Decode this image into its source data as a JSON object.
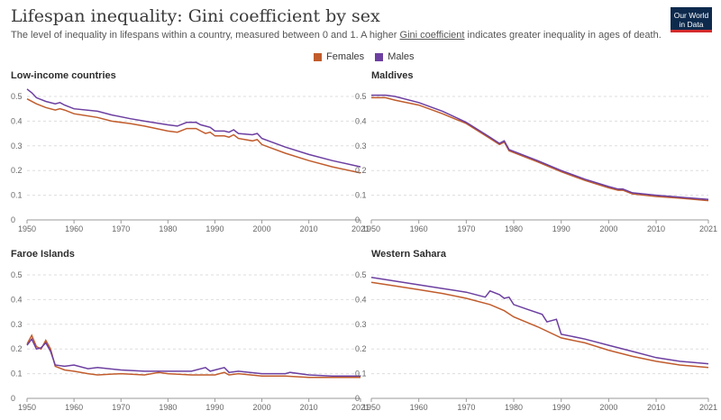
{
  "header": {
    "title": "Lifespan inequality: Gini coefficient by sex",
    "subtitle_pre": "The level of inequality in lifespans within a country, measured between 0 and 1. A higher ",
    "subtitle_link": "Gini coefficient",
    "subtitle_post": " indicates greater inequality in ages of death.",
    "logo_line1": "Our World",
    "logo_line2": "in Data"
  },
  "legend": [
    {
      "label": "Females",
      "color": "#c15c2c"
    },
    {
      "label": "Males",
      "color": "#6c3fa0"
    }
  ],
  "chart_data": [
    {
      "type": "line",
      "title": "Low-income countries",
      "ylim": [
        0,
        0.5
      ],
      "yticks": [
        0,
        0.1,
        0.2,
        0.3,
        0.4,
        0.5
      ],
      "xticks": [
        1950,
        1960,
        1970,
        1980,
        1990,
        2000,
        2010,
        2021
      ],
      "series": [
        {
          "name": "Females",
          "color": "#c15c2c",
          "x": [
            1950,
            1952,
            1954,
            1956,
            1957,
            1958,
            1960,
            1965,
            1968,
            1972,
            1975,
            1980,
            1982,
            1984,
            1986,
            1987,
            1988,
            1989,
            1990,
            1992,
            1993,
            1994,
            1995,
            1998,
            1999,
            2000,
            2005,
            2010,
            2015,
            2021
          ],
          "values": [
            0.49,
            0.47,
            0.455,
            0.445,
            0.45,
            0.445,
            0.43,
            0.415,
            0.4,
            0.39,
            0.38,
            0.36,
            0.355,
            0.37,
            0.37,
            0.36,
            0.35,
            0.355,
            0.34,
            0.34,
            0.335,
            0.345,
            0.33,
            0.32,
            0.325,
            0.305,
            0.27,
            0.24,
            0.215,
            0.19
          ]
        },
        {
          "name": "Males",
          "color": "#6c3fa0",
          "x": [
            1950,
            1951,
            1952,
            1954,
            1956,
            1957,
            1958,
            1960,
            1965,
            1968,
            1972,
            1975,
            1980,
            1982,
            1984,
            1986,
            1987,
            1988,
            1989,
            1990,
            1992,
            1993,
            1994,
            1995,
            1998,
            1999,
            2000,
            2005,
            2010,
            2015,
            2021
          ],
          "values": [
            0.53,
            0.515,
            0.495,
            0.48,
            0.47,
            0.475,
            0.465,
            0.45,
            0.44,
            0.425,
            0.41,
            0.4,
            0.385,
            0.38,
            0.395,
            0.395,
            0.385,
            0.38,
            0.375,
            0.36,
            0.36,
            0.355,
            0.365,
            0.35,
            0.345,
            0.35,
            0.33,
            0.295,
            0.265,
            0.24,
            0.215
          ]
        }
      ]
    },
    {
      "type": "line",
      "title": "Maldives",
      "ylim": [
        0,
        0.5
      ],
      "yticks": [
        0,
        0.1,
        0.2,
        0.3,
        0.4,
        0.5
      ],
      "xticks": [
        1950,
        1960,
        1970,
        1980,
        1990,
        2000,
        2010,
        2021
      ],
      "series": [
        {
          "name": "Females",
          "color": "#c15c2c",
          "x": [
            1950,
            1953,
            1955,
            1960,
            1965,
            1970,
            1975,
            1977,
            1978,
            1979,
            1985,
            1990,
            1995,
            2000,
            2002,
            2003,
            2005,
            2010,
            2015,
            2021
          ],
          "values": [
            0.495,
            0.495,
            0.485,
            0.465,
            0.43,
            0.39,
            0.33,
            0.305,
            0.315,
            0.28,
            0.235,
            0.195,
            0.16,
            0.13,
            0.12,
            0.12,
            0.105,
            0.095,
            0.088,
            0.078
          ]
        },
        {
          "name": "Males",
          "color": "#6c3fa0",
          "x": [
            1950,
            1953,
            1955,
            1960,
            1965,
            1970,
            1975,
            1977,
            1978,
            1979,
            1985,
            1990,
            1995,
            2000,
            2002,
            2003,
            2005,
            2010,
            2015,
            2021
          ],
          "values": [
            0.505,
            0.505,
            0.5,
            0.475,
            0.44,
            0.395,
            0.335,
            0.31,
            0.32,
            0.285,
            0.24,
            0.2,
            0.165,
            0.135,
            0.125,
            0.125,
            0.11,
            0.1,
            0.092,
            0.083
          ]
        }
      ]
    },
    {
      "type": "line",
      "title": "Faroe Islands",
      "ylim": [
        0,
        0.5
      ],
      "yticks": [
        0,
        0.1,
        0.2,
        0.3,
        0.4,
        0.5
      ],
      "xticks": [
        1950,
        1960,
        1970,
        1980,
        1990,
        2000,
        2010,
        2021
      ],
      "series": [
        {
          "name": "Females",
          "color": "#c15c2c",
          "x": [
            1950,
            1951,
            1952,
            1953,
            1954,
            1955,
            1956,
            1958,
            1960,
            1963,
            1965,
            1970,
            1975,
            1978,
            1980,
            1985,
            1990,
            1992,
            1993,
            1995,
            2000,
            2005,
            2010,
            2015,
            2021
          ],
          "values": [
            0.22,
            0.255,
            0.21,
            0.2,
            0.235,
            0.2,
            0.13,
            0.115,
            0.11,
            0.1,
            0.095,
            0.1,
            0.095,
            0.105,
            0.1,
            0.095,
            0.095,
            0.105,
            0.095,
            0.1,
            0.09,
            0.09,
            0.085,
            0.085,
            0.085
          ]
        },
        {
          "name": "Males",
          "color": "#6c3fa0",
          "x": [
            1950,
            1951,
            1952,
            1953,
            1954,
            1955,
            1956,
            1958,
            1960,
            1963,
            1965,
            1970,
            1975,
            1980,
            1985,
            1988,
            1989,
            1990,
            1992,
            1993,
            1995,
            2000,
            2005,
            2006,
            2010,
            2015,
            2021
          ],
          "values": [
            0.215,
            0.24,
            0.2,
            0.205,
            0.225,
            0.19,
            0.135,
            0.13,
            0.135,
            0.12,
            0.125,
            0.115,
            0.11,
            0.11,
            0.11,
            0.125,
            0.11,
            0.115,
            0.125,
            0.105,
            0.11,
            0.1,
            0.1,
            0.105,
            0.095,
            0.09,
            0.09
          ]
        }
      ]
    },
    {
      "type": "line",
      "title": "Western Sahara",
      "ylim": [
        0,
        0.5
      ],
      "yticks": [
        0,
        0.1,
        0.2,
        0.3,
        0.4,
        0.5
      ],
      "xticks": [
        1950,
        1960,
        1970,
        1980,
        1990,
        2000,
        2010,
        2021
      ],
      "series": [
        {
          "name": "Females",
          "color": "#c15c2c",
          "x": [
            1950,
            1955,
            1960,
            1965,
            1970,
            1975,
            1978,
            1980,
            1985,
            1990,
            1995,
            2000,
            2005,
            2010,
            2015,
            2021
          ],
          "values": [
            0.47,
            0.455,
            0.44,
            0.425,
            0.405,
            0.38,
            0.355,
            0.33,
            0.29,
            0.245,
            0.225,
            0.195,
            0.17,
            0.15,
            0.135,
            0.125
          ]
        },
        {
          "name": "Males",
          "color": "#6c3fa0",
          "x": [
            1950,
            1955,
            1960,
            1965,
            1970,
            1974,
            1975,
            1977,
            1978,
            1979,
            1980,
            1983,
            1986,
            1987,
            1988,
            1989,
            1990,
            1995,
            2000,
            2005,
            2010,
            2015,
            2021
          ],
          "values": [
            0.49,
            0.475,
            0.46,
            0.445,
            0.43,
            0.41,
            0.435,
            0.42,
            0.405,
            0.41,
            0.38,
            0.36,
            0.34,
            0.31,
            0.315,
            0.32,
            0.26,
            0.24,
            0.215,
            0.19,
            0.165,
            0.15,
            0.14
          ]
        }
      ]
    }
  ]
}
